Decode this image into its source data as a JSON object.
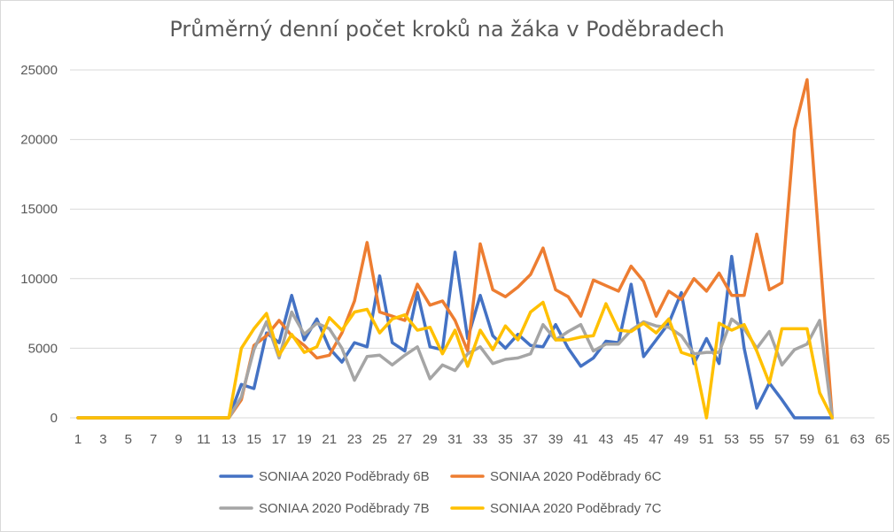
{
  "chart_data": {
    "type": "line",
    "title": "Průměrný denní počet kroků na žáka v Poděbradech",
    "xlabel": "",
    "ylabel": "",
    "xlim": [
      1,
      65
    ],
    "ylim": [
      0,
      25000
    ],
    "y_ticks": [
      "0",
      "5000",
      "10000",
      "15000",
      "20000",
      "25000"
    ],
    "x_ticks": [
      "1",
      "3",
      "5",
      "7",
      "9",
      "11",
      "13",
      "15",
      "17",
      "19",
      "21",
      "23",
      "25",
      "27",
      "29",
      "31",
      "33",
      "35",
      "37",
      "39",
      "41",
      "43",
      "45",
      "47",
      "49",
      "51",
      "53",
      "55",
      "57",
      "59",
      "61",
      "63",
      "65"
    ],
    "grid": "horizontal",
    "legend_position": "bottom",
    "series": [
      {
        "name": "SONIAA 2020 Poděbrady 6B",
        "color": "#4472C4",
        "values": [
          0,
          0,
          0,
          0,
          0,
          0,
          0,
          0,
          0,
          0,
          0,
          0,
          0,
          2400,
          2100,
          6100,
          5400,
          8800,
          5600,
          7100,
          5000,
          4000,
          5400,
          5100,
          10200,
          5400,
          4800,
          9000,
          5100,
          4900,
          11900,
          5700,
          8800,
          5900,
          5000,
          6000,
          5200,
          5100,
          6700,
          5000,
          3700,
          4300,
          5500,
          5400,
          9600,
          4400,
          5600,
          6800,
          9000,
          3900,
          5700,
          3900,
          11600,
          5000,
          700,
          2500,
          1300,
          0,
          0,
          0,
          0
        ]
      },
      {
        "name": "SONIAA 2020 Poděbrady 6C",
        "color": "#ED7D31",
        "values": [
          0,
          0,
          0,
          0,
          0,
          0,
          0,
          0,
          0,
          0,
          0,
          0,
          0,
          1300,
          5200,
          5900,
          7000,
          5900,
          5200,
          4300,
          4500,
          6100,
          8400,
          12600,
          7600,
          7300,
          7000,
          9600,
          8100,
          8400,
          7000,
          4800,
          12500,
          9200,
          8700,
          9400,
          10300,
          12200,
          9200,
          8700,
          7300,
          9900,
          9500,
          9100,
          10900,
          9800,
          7300,
          9100,
          8500,
          10000,
          9100,
          10400,
          8800,
          8800,
          13200,
          9200,
          9700,
          20700,
          24300,
          12000,
          0
        ]
      },
      {
        "name": "SONIAA 2020 Poděbrady 7B",
        "color": "#A5A5A5",
        "values": [
          0,
          0,
          0,
          0,
          0,
          0,
          0,
          0,
          0,
          0,
          0,
          0,
          0,
          1500,
          4900,
          6900,
          4300,
          7600,
          6000,
          6800,
          6400,
          5000,
          2700,
          4400,
          4500,
          3800,
          4500,
          5100,
          2800,
          3800,
          3400,
          4600,
          5100,
          3900,
          4200,
          4300,
          4600,
          6700,
          5600,
          6200,
          6700,
          4800,
          5300,
          5300,
          6300,
          6900,
          6600,
          6500,
          5900,
          4600,
          4700,
          4700,
          7100,
          6400,
          5000,
          6200,
          3800,
          4900,
          5300,
          7000,
          0
        ]
      },
      {
        "name": "SONIAA 2020 Poděbrady 7C",
        "color": "#FFC000",
        "values": [
          0,
          0,
          0,
          0,
          0,
          0,
          0,
          0,
          0,
          0,
          0,
          0,
          0,
          5000,
          6400,
          7500,
          4500,
          6000,
          4700,
          5100,
          7200,
          6300,
          7600,
          7800,
          6100,
          7100,
          7400,
          6300,
          6500,
          4600,
          6300,
          3700,
          6300,
          4900,
          6600,
          5600,
          7600,
          8300,
          5600,
          5600,
          5800,
          5900,
          8200,
          6300,
          6200,
          6800,
          6100,
          7100,
          4700,
          4400,
          0,
          6800,
          6300,
          6700,
          4800,
          2500,
          6400,
          6400,
          6400,
          1800,
          0
        ]
      }
    ]
  }
}
